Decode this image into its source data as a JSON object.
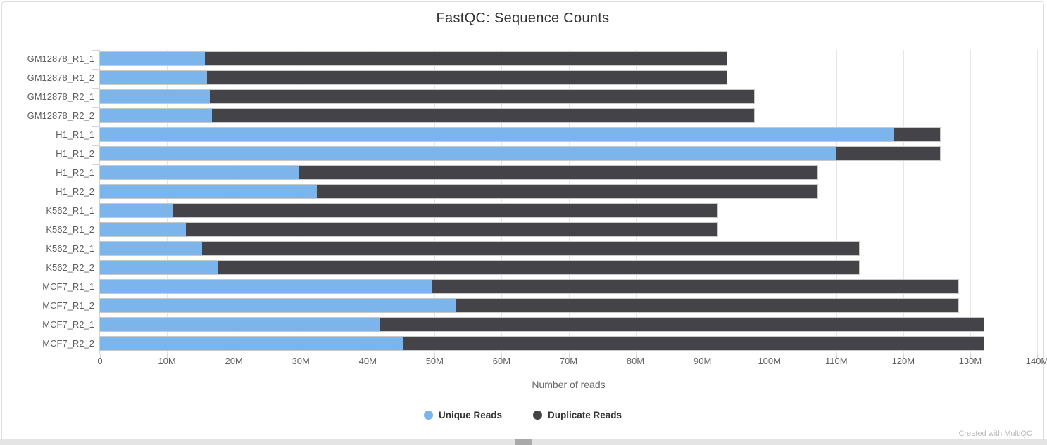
{
  "chart_data": {
    "type": "bar",
    "orientation": "horizontal",
    "stacked": true,
    "title": "FastQC: Sequence Counts",
    "xlabel": "Number of reads",
    "grid": true,
    "legend_position": "bottom",
    "values_unit": "millions of reads",
    "xlim_m": [
      0,
      140
    ],
    "x_ticks": [
      {
        "value_m": 0,
        "label": "0"
      },
      {
        "value_m": 10,
        "label": "10M"
      },
      {
        "value_m": 20,
        "label": "20M"
      },
      {
        "value_m": 30,
        "label": "30M"
      },
      {
        "value_m": 40,
        "label": "40M"
      },
      {
        "value_m": 50,
        "label": "50M"
      },
      {
        "value_m": 60,
        "label": "60M"
      },
      {
        "value_m": 70,
        "label": "70M"
      },
      {
        "value_m": 80,
        "label": "80M"
      },
      {
        "value_m": 90,
        "label": "90M"
      },
      {
        "value_m": 100,
        "label": "100M"
      },
      {
        "value_m": 110,
        "label": "110M"
      },
      {
        "value_m": 120,
        "label": "120M"
      },
      {
        "value_m": 130,
        "label": "130M"
      },
      {
        "value_m": 140,
        "label": "140M"
      }
    ],
    "categories": [
      "GM12878_R1_1",
      "GM12878_R1_2",
      "GM12878_R2_1",
      "GM12878_R2_2",
      "H1_R1_1",
      "H1_R1_2",
      "H1_R2_1",
      "H1_R2_2",
      "K562_R1_1",
      "K562_R1_2",
      "K562_R2_1",
      "K562_R2_2",
      "MCF7_R1_1",
      "MCF7_R1_2",
      "MCF7_R2_1",
      "MCF7_R2_2"
    ],
    "series": [
      {
        "name": "Unique Reads",
        "color": "#7cb5ec",
        "values_m": [
          15.7,
          16.0,
          16.4,
          16.7,
          118.6,
          110.0,
          29.8,
          32.4,
          10.8,
          12.8,
          15.3,
          17.7,
          49.5,
          53.2,
          41.9,
          45.3
        ]
      },
      {
        "name": "Duplicate Reads",
        "color": "#434348",
        "values_m": [
          77.9,
          77.6,
          81.3,
          81.0,
          6.9,
          15.5,
          77.4,
          74.8,
          81.4,
          79.4,
          98.1,
          95.7,
          78.7,
          75.0,
          90.1,
          86.7
        ]
      }
    ],
    "totals_m": [
      93.6,
      93.6,
      97.7,
      97.7,
      125.5,
      125.5,
      107.2,
      107.2,
      92.2,
      92.2,
      113.4,
      113.4,
      128.2,
      128.2,
      132.0,
      132.0
    ]
  },
  "footer": {
    "watermark": "Created with MultiQC"
  },
  "colors": {
    "axis_line": "#ccd6eb",
    "gridline": "#e6e6e6",
    "bar_border": "#c9c9c9",
    "tick_text": "#5f5f5f",
    "title_text": "#333333",
    "watermark_text": "#bbbbbb",
    "scrollbar_track": "#e4e4e4",
    "scrollbar_thumb": "#a9a9a9"
  }
}
